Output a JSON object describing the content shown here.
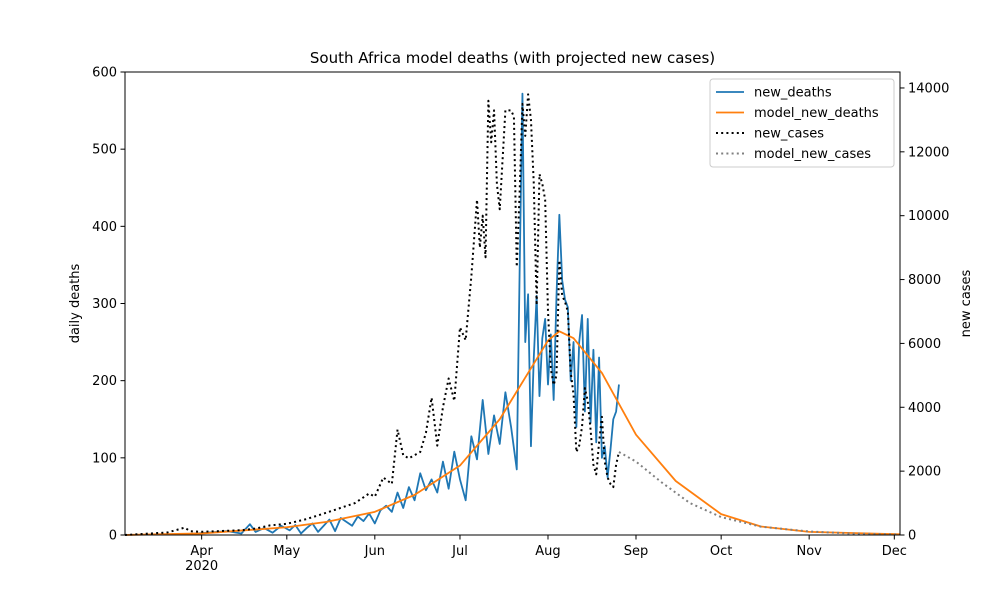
{
  "chart_data": {
    "type": "line",
    "title": "South Africa model deaths (with projected new cases)",
    "ylabel_left": "daily deaths",
    "ylabel_right": "new cases",
    "xlabel": "",
    "x_range": [
      "2020-03-05",
      "2020-12-03"
    ],
    "ylim_left": [
      0,
      600
    ],
    "ylim_right": [
      0,
      14500
    ],
    "grid": false,
    "legend_position": "top-right",
    "x_ticks": [
      {
        "date": "2020-04-01",
        "label": "Apr",
        "sublabel": "2020"
      },
      {
        "date": "2020-05-01",
        "label": "May",
        "sublabel": ""
      },
      {
        "date": "2020-06-01",
        "label": "Jun",
        "sublabel": ""
      },
      {
        "date": "2020-07-01",
        "label": "Jul",
        "sublabel": ""
      },
      {
        "date": "2020-08-01",
        "label": "Aug",
        "sublabel": ""
      },
      {
        "date": "2020-09-01",
        "label": "Sep",
        "sublabel": ""
      },
      {
        "date": "2020-10-01",
        "label": "Oct",
        "sublabel": ""
      },
      {
        "date": "2020-11-01",
        "label": "Nov",
        "sublabel": ""
      },
      {
        "date": "2020-12-01",
        "label": "Dec",
        "sublabel": ""
      }
    ],
    "y_ticks_left": [
      {
        "value": 0,
        "label": "0"
      },
      {
        "value": 100,
        "label": "100"
      },
      {
        "value": 200,
        "label": "200"
      },
      {
        "value": 300,
        "label": "300"
      },
      {
        "value": 400,
        "label": "400"
      },
      {
        "value": 500,
        "label": "500"
      },
      {
        "value": 600,
        "label": "600"
      }
    ],
    "y_ticks_right": [
      {
        "value": 0,
        "label": "0"
      },
      {
        "value": 2000,
        "label": "2000"
      },
      {
        "value": 4000,
        "label": "4000"
      },
      {
        "value": 6000,
        "label": "6000"
      },
      {
        "value": 8000,
        "label": "8000"
      },
      {
        "value": 10000,
        "label": "10000"
      },
      {
        "value": 12000,
        "label": "12000"
      },
      {
        "value": 14000,
        "label": "14000"
      }
    ],
    "series": [
      {
        "name": "new_deaths",
        "axis": "left",
        "color": "#1f77b4",
        "style": "solid",
        "points": [
          [
            "2020-03-27",
            1
          ],
          [
            "2020-04-03",
            3
          ],
          [
            "2020-04-10",
            5
          ],
          [
            "2020-04-15",
            2
          ],
          [
            "2020-04-18",
            14
          ],
          [
            "2020-04-20",
            4
          ],
          [
            "2020-04-23",
            9
          ],
          [
            "2020-04-26",
            3
          ],
          [
            "2020-04-29",
            12
          ],
          [
            "2020-05-02",
            6
          ],
          [
            "2020-05-04",
            13
          ],
          [
            "2020-05-06",
            2
          ],
          [
            "2020-05-08",
            9
          ],
          [
            "2020-05-10",
            15
          ],
          [
            "2020-05-12",
            4
          ],
          [
            "2020-05-14",
            12
          ],
          [
            "2020-05-16",
            20
          ],
          [
            "2020-05-18",
            5
          ],
          [
            "2020-05-20",
            22
          ],
          [
            "2020-05-22",
            17
          ],
          [
            "2020-05-24",
            12
          ],
          [
            "2020-05-26",
            24
          ],
          [
            "2020-05-28",
            18
          ],
          [
            "2020-05-30",
            28
          ],
          [
            "2020-06-01",
            15
          ],
          [
            "2020-06-03",
            32
          ],
          [
            "2020-06-05",
            38
          ],
          [
            "2020-06-07",
            30
          ],
          [
            "2020-06-09",
            55
          ],
          [
            "2020-06-11",
            35
          ],
          [
            "2020-06-13",
            62
          ],
          [
            "2020-06-15",
            45
          ],
          [
            "2020-06-17",
            80
          ],
          [
            "2020-06-19",
            58
          ],
          [
            "2020-06-21",
            72
          ],
          [
            "2020-06-23",
            55
          ],
          [
            "2020-06-25",
            95
          ],
          [
            "2020-06-27",
            60
          ],
          [
            "2020-06-29",
            108
          ],
          [
            "2020-07-01",
            72
          ],
          [
            "2020-07-03",
            45
          ],
          [
            "2020-07-05",
            128
          ],
          [
            "2020-07-07",
            98
          ],
          [
            "2020-07-09",
            175
          ],
          [
            "2020-07-11",
            105
          ],
          [
            "2020-07-13",
            155
          ],
          [
            "2020-07-15",
            118
          ],
          [
            "2020-07-17",
            185
          ],
          [
            "2020-07-19",
            140
          ],
          [
            "2020-07-21",
            85
          ],
          [
            "2020-07-22",
            340
          ],
          [
            "2020-07-23",
            572
          ],
          [
            "2020-07-24",
            250
          ],
          [
            "2020-07-25",
            312
          ],
          [
            "2020-07-26",
            115
          ],
          [
            "2020-07-27",
            230
          ],
          [
            "2020-07-28",
            310
          ],
          [
            "2020-07-29",
            180
          ],
          [
            "2020-07-30",
            255
          ],
          [
            "2020-07-31",
            280
          ],
          [
            "2020-08-01",
            195
          ],
          [
            "2020-08-02",
            260
          ],
          [
            "2020-08-03",
            175
          ],
          [
            "2020-08-04",
            310
          ],
          [
            "2020-08-05",
            415
          ],
          [
            "2020-08-06",
            330
          ],
          [
            "2020-08-07",
            305
          ],
          [
            "2020-08-08",
            295
          ],
          [
            "2020-08-09",
            200
          ],
          [
            "2020-08-10",
            250
          ],
          [
            "2020-08-11",
            140
          ],
          [
            "2020-08-12",
            250
          ],
          [
            "2020-08-13",
            285
          ],
          [
            "2020-08-14",
            160
          ],
          [
            "2020-08-15",
            280
          ],
          [
            "2020-08-16",
            145
          ],
          [
            "2020-08-17",
            240
          ],
          [
            "2020-08-18",
            120
          ],
          [
            "2020-08-19",
            230
          ],
          [
            "2020-08-20",
            100
          ],
          [
            "2020-08-21",
            115
          ],
          [
            "2020-08-22",
            75
          ],
          [
            "2020-08-23",
            110
          ],
          [
            "2020-08-24",
            150
          ],
          [
            "2020-08-25",
            160
          ],
          [
            "2020-08-26",
            195
          ]
        ]
      },
      {
        "name": "model_new_deaths",
        "axis": "left",
        "color": "#ff7f0e",
        "style": "solid",
        "points": [
          [
            "2020-03-05",
            0
          ],
          [
            "2020-04-01",
            2
          ],
          [
            "2020-05-01",
            10
          ],
          [
            "2020-05-15",
            17
          ],
          [
            "2020-06-01",
            30
          ],
          [
            "2020-06-15",
            52
          ],
          [
            "2020-07-01",
            90
          ],
          [
            "2020-07-15",
            150
          ],
          [
            "2020-07-25",
            210
          ],
          [
            "2020-08-01",
            252
          ],
          [
            "2020-08-05",
            264
          ],
          [
            "2020-08-10",
            255
          ],
          [
            "2020-08-20",
            210
          ],
          [
            "2020-09-01",
            130
          ],
          [
            "2020-09-15",
            70
          ],
          [
            "2020-10-01",
            27
          ],
          [
            "2020-10-15",
            11
          ],
          [
            "2020-11-01",
            4
          ],
          [
            "2020-12-03",
            1
          ]
        ]
      },
      {
        "name": "new_cases",
        "axis": "right",
        "color": "#000000",
        "style": "dotted",
        "points": [
          [
            "2020-03-05",
            0
          ],
          [
            "2020-03-20",
            80
          ],
          [
            "2020-03-26",
            230
          ],
          [
            "2020-03-28",
            120
          ],
          [
            "2020-04-01",
            100
          ],
          [
            "2020-04-15",
            150
          ],
          [
            "2020-04-20",
            200
          ],
          [
            "2020-04-25",
            300
          ],
          [
            "2020-05-01",
            350
          ],
          [
            "2020-05-08",
            500
          ],
          [
            "2020-05-15",
            700
          ],
          [
            "2020-05-20",
            850
          ],
          [
            "2020-05-25",
            1000
          ],
          [
            "2020-05-30",
            1300
          ],
          [
            "2020-06-01",
            1200
          ],
          [
            "2020-06-04",
            1800
          ],
          [
            "2020-06-07",
            1600
          ],
          [
            "2020-06-09",
            3300
          ],
          [
            "2020-06-11",
            2500
          ],
          [
            "2020-06-13",
            2400
          ],
          [
            "2020-06-15",
            2500
          ],
          [
            "2020-06-17",
            2600
          ],
          [
            "2020-06-19",
            3200
          ],
          [
            "2020-06-21",
            4300
          ],
          [
            "2020-06-23",
            2800
          ],
          [
            "2020-06-25",
            4000
          ],
          [
            "2020-06-27",
            4900
          ],
          [
            "2020-06-29",
            4200
          ],
          [
            "2020-07-01",
            6500
          ],
          [
            "2020-07-03",
            6100
          ],
          [
            "2020-07-05",
            8100
          ],
          [
            "2020-07-07",
            10500
          ],
          [
            "2020-07-08",
            9000
          ],
          [
            "2020-07-09",
            10000
          ],
          [
            "2020-07-10",
            8700
          ],
          [
            "2020-07-11",
            13600
          ],
          [
            "2020-07-12",
            12300
          ],
          [
            "2020-07-13",
            13300
          ],
          [
            "2020-07-14",
            11000
          ],
          [
            "2020-07-15",
            10200
          ],
          [
            "2020-07-17",
            13300
          ],
          [
            "2020-07-19",
            13300
          ],
          [
            "2020-07-20",
            13100
          ],
          [
            "2020-07-21",
            8400
          ],
          [
            "2020-07-22",
            10700
          ],
          [
            "2020-07-23",
            13500
          ],
          [
            "2020-07-24",
            12500
          ],
          [
            "2020-07-25",
            13800
          ],
          [
            "2020-07-26",
            13000
          ],
          [
            "2020-07-27",
            11000
          ],
          [
            "2020-07-28",
            7200
          ],
          [
            "2020-07-29",
            11300
          ],
          [
            "2020-07-30",
            11000
          ],
          [
            "2020-07-31",
            10500
          ],
          [
            "2020-08-01",
            7000
          ],
          [
            "2020-08-02",
            5200
          ],
          [
            "2020-08-03",
            4700
          ],
          [
            "2020-08-04",
            5000
          ],
          [
            "2020-08-05",
            8600
          ],
          [
            "2020-08-06",
            7500
          ],
          [
            "2020-08-07",
            7300
          ],
          [
            "2020-08-08",
            7000
          ],
          [
            "2020-08-09",
            5100
          ],
          [
            "2020-08-10",
            4400
          ],
          [
            "2020-08-11",
            2600
          ],
          [
            "2020-08-12",
            2800
          ],
          [
            "2020-08-13",
            3400
          ],
          [
            "2020-08-14",
            4600
          ],
          [
            "2020-08-15",
            4200
          ],
          [
            "2020-08-16",
            3300
          ],
          [
            "2020-08-17",
            2200
          ],
          [
            "2020-08-18",
            1900
          ],
          [
            "2020-08-19",
            2900
          ],
          [
            "2020-08-20",
            3700
          ],
          [
            "2020-08-21",
            2300
          ],
          [
            "2020-08-22",
            1800
          ],
          [
            "2020-08-23",
            1600
          ],
          [
            "2020-08-24",
            1500
          ],
          [
            "2020-08-25",
            2200
          ],
          [
            "2020-08-26",
            2600
          ]
        ]
      },
      {
        "name": "model_new_cases",
        "axis": "right",
        "color": "#808080",
        "style": "dotted",
        "points": [
          [
            "2020-08-26",
            2600
          ],
          [
            "2020-09-01",
            2300
          ],
          [
            "2020-09-10",
            1650
          ],
          [
            "2020-09-20",
            1000
          ],
          [
            "2020-10-01",
            560
          ],
          [
            "2020-10-15",
            260
          ],
          [
            "2020-11-01",
            110
          ],
          [
            "2020-11-15",
            50
          ],
          [
            "2020-12-03",
            15
          ]
        ]
      }
    ]
  }
}
